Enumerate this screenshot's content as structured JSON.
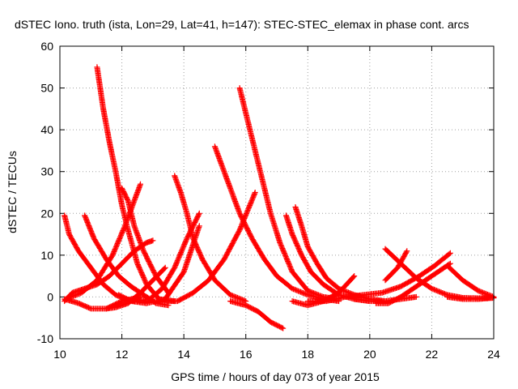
{
  "chart_data": {
    "type": "scatter",
    "title": "dSTEC Iono. truth (ista, Lon=29, Lat=41, h=147): STEC-STEC_elemax in phase cont. arcs",
    "xlabel": "GPS time / hours of day 073 of year 2015",
    "ylabel": "dSTEC  / TECUs",
    "xlim": [
      10,
      24
    ],
    "ylim": [
      -10,
      60
    ],
    "xticks": [
      10,
      12,
      14,
      16,
      18,
      20,
      22,
      24
    ],
    "yticks": [
      -10,
      0,
      10,
      20,
      30,
      40,
      50,
      60
    ],
    "grid": true,
    "legend": "none",
    "marker": "+",
    "color": "#ff0000",
    "series": [
      {
        "x": [
          10.15,
          10.4,
          10.8,
          11.2,
          11.6,
          12.0,
          12.4,
          12.8,
          13.0
        ],
        "y": [
          -1,
          1,
          2,
          3,
          5,
          8,
          11,
          13,
          13.5
        ]
      },
      {
        "x": [
          10.15,
          10.3,
          10.6,
          11.0,
          11.4,
          11.8,
          12.1,
          12.4
        ],
        "y": [
          19.5,
          15,
          11,
          7,
          3,
          0.5,
          -0.5,
          -1
        ]
      },
      {
        "x": [
          10.15,
          10.6,
          11.0,
          11.5,
          12.0,
          12.6
        ],
        "y": [
          -0.5,
          -1.5,
          -2.8,
          -2.8,
          -1,
          0
        ]
      },
      {
        "x": [
          10.2,
          10.7,
          11.2,
          11.7,
          12.1,
          12.6
        ],
        "y": [
          -0.5,
          1,
          4,
          10,
          17,
          27
        ]
      },
      {
        "x": [
          10.8,
          11.1,
          11.5,
          11.9,
          12.3,
          12.7,
          13.1,
          13.5
        ],
        "y": [
          19.5,
          14,
          9,
          5,
          2.5,
          0.5,
          -1.5,
          -2
        ]
      },
      {
        "x": [
          11.2,
          11.4,
          11.6,
          11.8,
          12.0,
          12.2,
          12.5,
          12.8,
          13.2,
          13.7
        ],
        "y": [
          55,
          45,
          37,
          30,
          22,
          16,
          8,
          3,
          -0.5,
          -1
        ]
      },
      {
        "x": [
          11.5,
          11.8,
          12.2,
          12.6,
          13.0,
          13.4
        ],
        "y": [
          -2.8,
          -2.5,
          -1.5,
          1,
          4,
          7
        ]
      },
      {
        "x": [
          11.9,
          12.3,
          12.8,
          13.4,
          14.0,
          14.5
        ],
        "y": [
          0.5,
          -1,
          -1.5,
          -0.5,
          6,
          17
        ]
      },
      {
        "x": [
          12.0,
          12.2,
          12.4,
          12.7,
          13.1,
          13.5
        ],
        "y": [
          26,
          23,
          17,
          11,
          5,
          1
        ]
      },
      {
        "x": [
          12.5,
          12.9,
          13.3,
          13.7,
          14.1,
          14.5
        ],
        "y": [
          -1,
          -0.5,
          2,
          7,
          14,
          20
        ]
      },
      {
        "x": [
          13.7,
          13.9,
          14.1,
          14.3,
          14.6,
          15.0,
          15.5,
          16.0
        ],
        "y": [
          29,
          25,
          20,
          14,
          9,
          4,
          0.5,
          -1
        ]
      },
      {
        "x": [
          13.3,
          13.8,
          14.3,
          14.8,
          15.3,
          15.8,
          16.3
        ],
        "y": [
          -1,
          -1,
          1,
          4,
          9,
          16,
          25
        ]
      },
      {
        "x": [
          15.0,
          15.2,
          15.5,
          15.8,
          16.2,
          16.6,
          17.0,
          17.5,
          18.0,
          18.5,
          19.0
        ],
        "y": [
          36,
          32,
          26,
          20,
          14,
          9,
          5,
          2,
          0.5,
          -0.5,
          -1
        ]
      },
      {
        "x": [
          15.8,
          16.0,
          16.2,
          16.4,
          16.6,
          16.8,
          17.1,
          17.5,
          18.0,
          18.5,
          19.0
        ],
        "y": [
          50,
          44,
          38,
          32,
          26,
          20,
          13,
          6,
          1.5,
          0,
          -0.5
        ]
      },
      {
        "x": [
          15.5,
          16.0,
          16.4,
          16.8,
          17.2
        ],
        "y": [
          -1,
          -2,
          -3.5,
          -6,
          -7.5
        ]
      },
      {
        "x": [
          17.3,
          17.5,
          17.8,
          18.1,
          18.5,
          19.0,
          19.5,
          20.0
        ],
        "y": [
          19.5,
          15,
          10,
          6,
          3,
          0.5,
          -0.5,
          -1
        ]
      },
      {
        "x": [
          17.6,
          17.8,
          18.0,
          18.3,
          18.6,
          19.0,
          19.5,
          20.0,
          20.5
        ],
        "y": [
          21.5,
          17,
          12,
          8,
          4.5,
          2,
          0.5,
          -0.5,
          -1
        ]
      },
      {
        "x": [
          17.5,
          18.0,
          18.5,
          19.0,
          19.5
        ],
        "y": [
          -1,
          -2,
          -1,
          1,
          5
        ]
      },
      {
        "x": [
          18.0,
          18.6,
          19.2,
          19.8,
          20.4,
          21.0,
          21.6,
          22.1,
          22.6
        ],
        "y": [
          -1,
          -1,
          0,
          0.5,
          1,
          2.5,
          5,
          7.5,
          10.5
        ]
      },
      {
        "x": [
          19.5,
          20.0,
          20.5,
          21.0,
          21.5
        ],
        "y": [
          -0.5,
          -1,
          -1,
          -0.5,
          0
        ]
      },
      {
        "x": [
          20.5,
          21.0,
          21.5,
          22.0,
          22.5,
          23.0,
          23.5,
          24.0
        ],
        "y": [
          11.5,
          8,
          4.5,
          2,
          0.5,
          -0.2,
          -0.3,
          -0.2
        ]
      },
      {
        "x": [
          20.2,
          20.6,
          21.0,
          21.4,
          22.0,
          22.6
        ],
        "y": [
          -1.5,
          -1.5,
          0,
          2,
          5,
          8
        ]
      },
      {
        "x": [
          20.5,
          20.9,
          21.2
        ],
        "y": [
          4,
          7,
          11
        ]
      },
      {
        "x": [
          22.5,
          23.0,
          23.5,
          24.0
        ],
        "y": [
          7.5,
          4,
          1.5,
          0
        ]
      },
      {
        "x": [
          22.5,
          23.0,
          23.5,
          24.0
        ],
        "y": [
          0,
          -0.5,
          -0.5,
          -0.2
        ]
      }
    ]
  }
}
